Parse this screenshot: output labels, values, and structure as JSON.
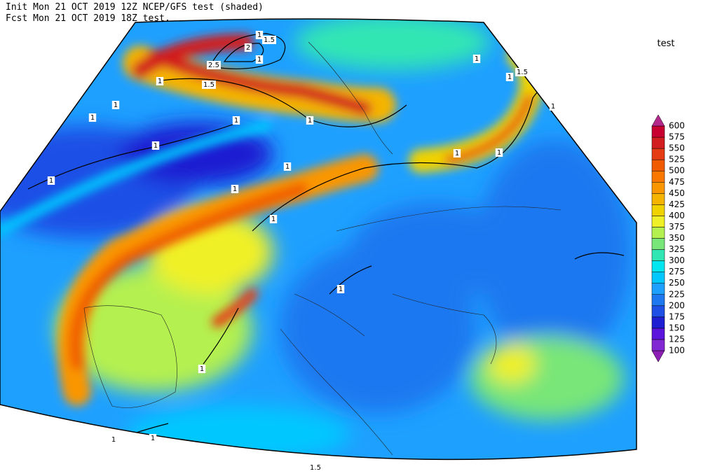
{
  "header": {
    "line1": "Init  Mon 21 OCT 2019 12Z  NCEP/GFS test (shaded)",
    "line2": "Fcst Mon 21 OCT 2019 18Z  test."
  },
  "legend": {
    "title": "test",
    "levels": [
      100,
      125,
      150,
      175,
      200,
      225,
      250,
      275,
      300,
      325,
      350,
      375,
      400,
      425,
      450,
      475,
      500,
      525,
      550,
      575,
      600
    ],
    "colors": [
      "#8c1eb4",
      "#8228d2",
      "#5a14dc",
      "#1e1ed2",
      "#1e50e6",
      "#1e78f0",
      "#1ea0ff",
      "#00c8ff",
      "#00e6f0",
      "#32e6b4",
      "#78e678",
      "#b4f050",
      "#f0f028",
      "#f0d200",
      "#f5b400",
      "#fa9600",
      "#fa7800",
      "#f05a00",
      "#e63c14",
      "#d21e1e",
      "#c80032",
      "#b4288c"
    ]
  },
  "contour_labels": [
    "1",
    "1.5",
    "2",
    "2.5",
    "1",
    "1",
    "1.5",
    "1",
    "1",
    "1",
    "1",
    "1",
    "1",
    "1",
    "1",
    "1",
    "1",
    "1",
    "1",
    "1",
    "1",
    "1.5",
    "1",
    "1",
    "1",
    "1",
    "1.5"
  ]
}
